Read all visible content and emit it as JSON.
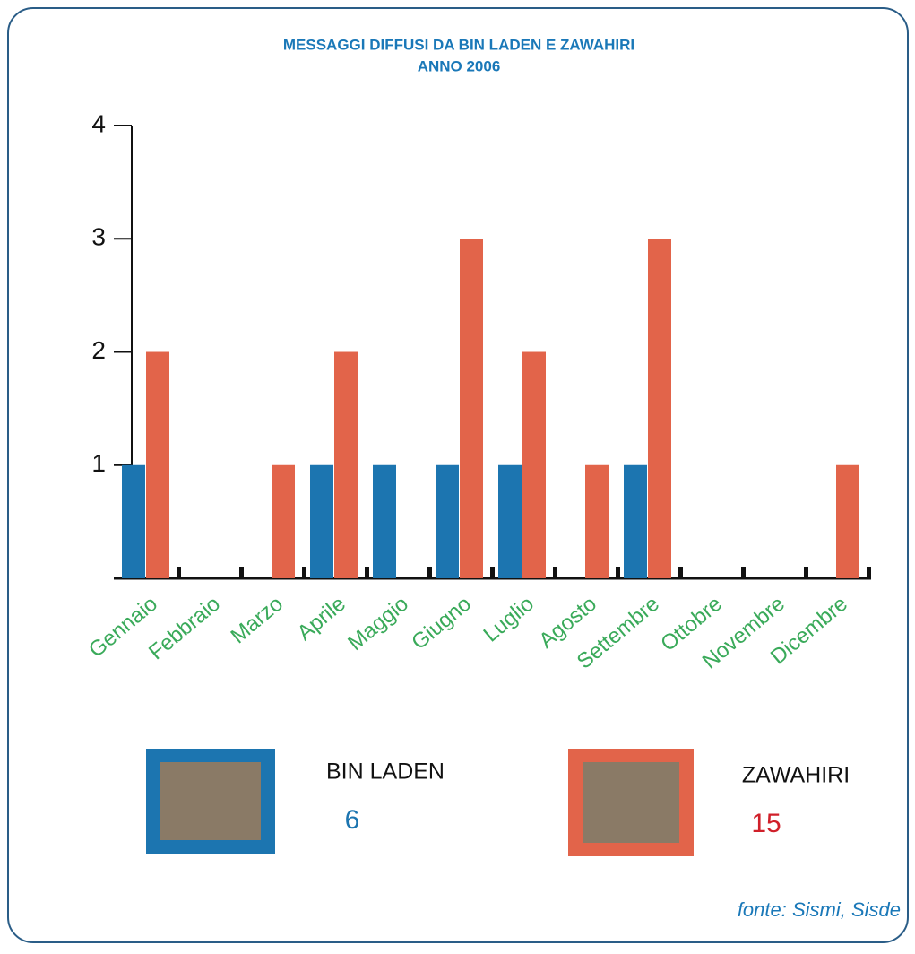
{
  "chart_data": {
    "type": "bar",
    "title": "MESSAGGI DIFFUSI DA BIN LADEN E ZAWAHIRI",
    "subtitle": "ANNO 2006",
    "categories": [
      "Gennaio",
      "Febbraio",
      "Marzo",
      "Aprile",
      "Maggio",
      "Giugno",
      "Luglio",
      "Agosto",
      "Settembre",
      "Ottobre",
      "Novembre",
      "Dicembre"
    ],
    "series": [
      {
        "name": "BIN LADEN",
        "color": "#1c75b0",
        "values": [
          1,
          0,
          0,
          1,
          1,
          1,
          1,
          0,
          1,
          0,
          0,
          0
        ],
        "total": 6
      },
      {
        "name": "ZAWAHIRI",
        "color": "#e2644a",
        "values": [
          2,
          0,
          1,
          2,
          0,
          3,
          2,
          1,
          3,
          0,
          0,
          1
        ],
        "total": 15
      }
    ],
    "ylim": [
      0,
      4
    ],
    "yticks": [
      1,
      2,
      3,
      4
    ],
    "grid": false,
    "source": "fonte: Sismi, Sisde"
  }
}
